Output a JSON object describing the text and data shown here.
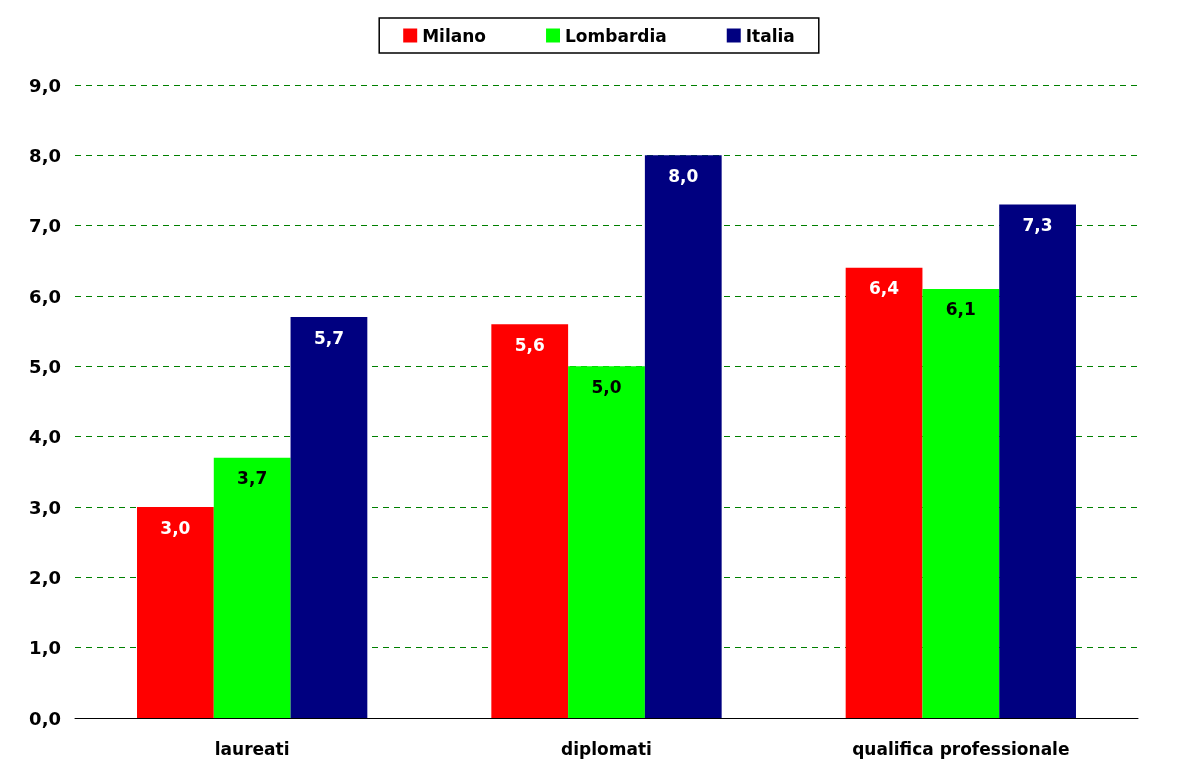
{
  "chart_data": {
    "type": "bar",
    "categories": [
      "laureati",
      "diplomati",
      "qualifica professionale"
    ],
    "series": [
      {
        "name": "Milano",
        "color": "#ff0000",
        "values": [
          3.0,
          5.6,
          6.4
        ],
        "value_labels": [
          "3,0",
          "5,6",
          "6,4"
        ]
      },
      {
        "name": "Lombardia",
        "color": "#00ff00",
        "values": [
          3.7,
          5.0,
          6.1
        ],
        "value_labels": [
          "3,7",
          "5,0",
          "6,1"
        ]
      },
      {
        "name": "Italia",
        "color": "#000080",
        "values": [
          5.7,
          8.0,
          7.3
        ],
        "value_labels": [
          "5,7",
          "8,0",
          "7,3"
        ]
      }
    ],
    "ylim": [
      0,
      9
    ],
    "yticks": [
      {
        "value": 0,
        "label": "0,0"
      },
      {
        "value": 1,
        "label": "1,0"
      },
      {
        "value": 2,
        "label": "2,0"
      },
      {
        "value": 3,
        "label": "3,0"
      },
      {
        "value": 4,
        "label": "4,0"
      },
      {
        "value": 5,
        "label": "5,0"
      },
      {
        "value": 6,
        "label": "6,0"
      },
      {
        "value": 7,
        "label": "7,0"
      },
      {
        "value": 8,
        "label": "8,0"
      },
      {
        "value": 9,
        "label": "9,0"
      }
    ],
    "grid": "y",
    "legend": "top"
  }
}
